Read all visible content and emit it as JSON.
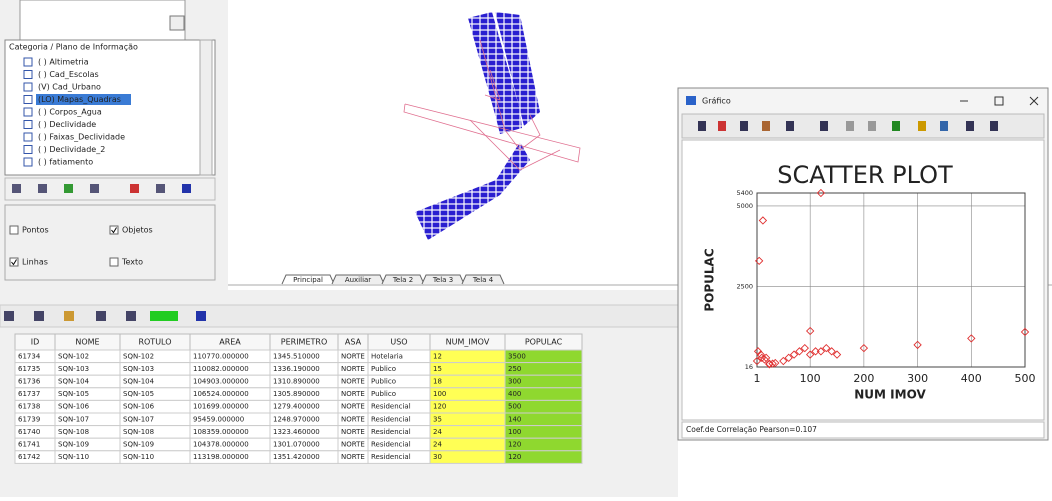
{
  "tree": {
    "header": "Categoria / Plano de Informação",
    "items": [
      "( ) Altimetria",
      "( ) Cad_Escolas",
      "(V) Cad_Urbano",
      "(LO) Mapas_Quadras",
      "( ) Corpos_Agua",
      "( ) Declividade",
      "( ) Faixas_Declividade",
      "( ) Declividade_2",
      "( ) fatiamento"
    ]
  },
  "display_options": [
    "Pontos",
    "Objetos",
    "Linhas",
    "Texto"
  ],
  "tabs": [
    "Principal",
    "Auxiliar",
    "Tela 2",
    "Tela 3",
    "Tela 4"
  ],
  "table": {
    "columns": [
      "ID",
      "NOME",
      "ROTULO",
      "AREA",
      "PERIMETRO",
      "ASA",
      "USO",
      "NUM_IMOV",
      "POPULAC"
    ],
    "rows": [
      [
        "61734",
        "SQN-102",
        "SQN-102",
        "110770.000000",
        "1345.510000",
        "NORTE",
        "Hotelaria",
        "12",
        "3500"
      ],
      [
        "61735",
        "SQN-103",
        "SQN-103",
        "110082.000000",
        "1336.190000",
        "NORTE",
        "Publico",
        "15",
        "250"
      ],
      [
        "61736",
        "SQN-104",
        "SQN-104",
        "104903.000000",
        "1310.890000",
        "NORTE",
        "Publico",
        "18",
        "300"
      ],
      [
        "61737",
        "SQN-105",
        "SQN-105",
        "106524.000000",
        "1305.890000",
        "NORTE",
        "Publico",
        "100",
        "400"
      ],
      [
        "61738",
        "SQN-106",
        "SQN-106",
        "101699.000000",
        "1279.400000",
        "NORTE",
        "Residencial",
        "120",
        "500"
      ],
      [
        "61739",
        "SQN-107",
        "SQN-107",
        "95459.000000",
        "1248.970000",
        "NORTE",
        "Residencial",
        "35",
        "140"
      ],
      [
        "61740",
        "SQN-108",
        "SQN-108",
        "108359.000000",
        "1323.460000",
        "NORTE",
        "Residencial",
        "24",
        "100"
      ],
      [
        "61741",
        "SQN-109",
        "SQN-109",
        "104378.000000",
        "1301.070000",
        "NORTE",
        "Residencial",
        "24",
        "120"
      ],
      [
        "61742",
        "SQN-110",
        "SQN-110",
        "113198.000000",
        "1351.420000",
        "NORTE",
        "Residencial",
        "30",
        "120"
      ]
    ]
  },
  "graph_window": {
    "title": "Gráfico",
    "footer": "Coef.de Correlação Pearson=0.107",
    "chart": {
      "type": "scatter",
      "title": "SCATTER PLOT",
      "x_label": "NUM IMOV",
      "y_label": "POPULAC",
      "x": [
        12,
        5,
        120,
        100,
        200,
        300,
        400,
        500,
        1,
        3,
        8,
        10,
        15,
        18,
        24,
        24,
        30,
        35,
        50,
        60,
        70,
        80,
        90,
        100,
        110,
        120,
        130,
        140,
        150
      ],
      "y": [
        4550,
        3300,
        5400,
        1130,
        600,
        700,
        900,
        1100,
        200,
        500,
        400,
        300,
        250,
        300,
        100,
        120,
        120,
        140,
        200,
        300,
        400,
        500,
        600,
        400,
        500,
        500,
        600,
        500,
        400
      ],
      "xlim": [
        1,
        500
      ],
      "ylim": [
        16,
        5400
      ],
      "xticks": [
        1,
        100,
        200,
        300,
        400,
        500
      ],
      "yticks": [
        16,
        2500,
        5000,
        5400
      ],
      "color": "#e03030",
      "grid": true
    }
  }
}
